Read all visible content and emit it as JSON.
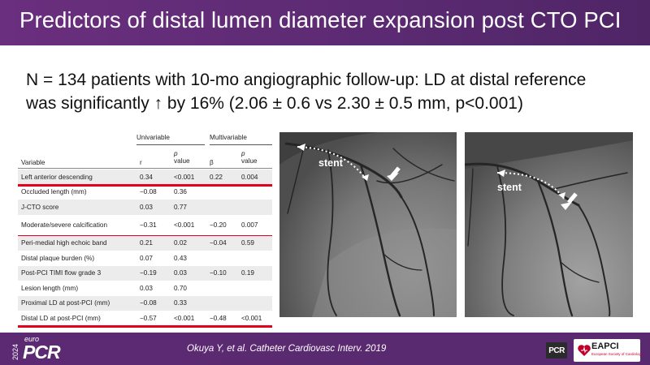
{
  "slide": {
    "title": "Predictors of distal lumen diameter expansion post CTO PCI",
    "intro_line1": "N = 134 patients with 10-mo angiographic follow-up: LD at distal reference",
    "intro_line2": "was significantly ↑ by 16% (2.06 ± 0.6 vs 2.30 ± 0.5 mm, p<0.001)"
  },
  "table": {
    "group_univariable": "Univariable",
    "group_multivariable": "Multivariable",
    "col_variable": "Variable",
    "col_r": "r",
    "col_p_top": "p",
    "col_p_bottom": "value",
    "col_beta": "β",
    "rows": [
      {
        "variable": "Left anterior descending",
        "r": "0.34",
        "p": "<0.001",
        "beta": "0.22",
        "mp": "0.004"
      },
      {
        "variable": "Occluded length (mm)",
        "r": "−0.08",
        "p": "0.36",
        "beta": "",
        "mp": ""
      },
      {
        "variable": "J-CTO score",
        "r": "0.03",
        "p": "0.77",
        "beta": "",
        "mp": ""
      },
      {
        "variable": "Moderate/severe calcification",
        "r": "−0.31",
        "p": "<0.001",
        "beta": "−0.20",
        "mp": "0.007"
      },
      {
        "variable": "Peri-medial high echoic band",
        "r": "0.21",
        "p": "0.02",
        "beta": "−0.04",
        "mp": "0.59"
      },
      {
        "variable": "Distal plaque burden (%)",
        "r": "0.07",
        "p": "0.43",
        "beta": "",
        "mp": ""
      },
      {
        "variable": "Post-PCI TIMI flow grade 3",
        "r": "−0.19",
        "p": "0.03",
        "beta": "−0.10",
        "mp": "0.19"
      },
      {
        "variable": "Lesion length (mm)",
        "r": "0.03",
        "p": "0.70",
        "beta": "",
        "mp": ""
      },
      {
        "variable": "Proximal LD at post-PCI (mm)",
        "r": "−0.08",
        "p": "0.33",
        "beta": "",
        "mp": ""
      },
      {
        "variable": "Distal LD at post-PCI (mm)",
        "r": "−0.57",
        "p": "<0.001",
        "beta": "−0.48",
        "mp": "<0.001"
      }
    ],
    "highlight_color": "#e3001b"
  },
  "images": {
    "left_label": "stent",
    "right_label": "stent"
  },
  "footer": {
    "logo_year": "2024",
    "logo_euro": "euro",
    "logo_pcr": "PCR",
    "citation": "Okuya Y, et al. Catheter Cardiovasc Interv. 2019",
    "pcr_badge": "PCR",
    "eapci": "EAPCI",
    "eapci_sub": "European Society of Cardiology",
    "brand_color": "#5b2a72"
  }
}
